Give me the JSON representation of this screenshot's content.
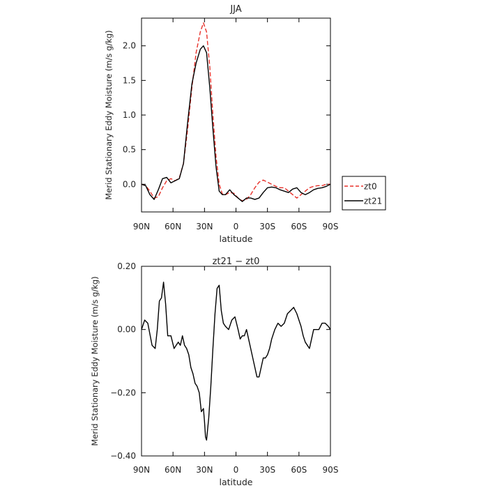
{
  "chart_data": [
    {
      "type": "line",
      "title": "JJA",
      "xlabel": "latitude",
      "ylabel": "Merid Stationary Eddy Moisture (m/s g/kg)",
      "xlim": [
        90,
        -90
      ],
      "ylim": [
        -0.4,
        2.4
      ],
      "xticks": [
        {
          "value": 90,
          "label": "90N"
        },
        {
          "value": 60,
          "label": "60N"
        },
        {
          "value": 30,
          "label": "30N"
        },
        {
          "value": 0,
          "label": "0"
        },
        {
          "value": -30,
          "label": "30S"
        },
        {
          "value": -60,
          "label": "60S"
        },
        {
          "value": -90,
          "label": "90S"
        }
      ],
      "yticks": [
        {
          "value": 0,
          "label": "0.0"
        },
        {
          "value": 0.5,
          "label": "0.5"
        },
        {
          "value": 1.0,
          "label": "1.0"
        },
        {
          "value": 1.5,
          "label": "1.5"
        },
        {
          "value": 2.0,
          "label": "2.0"
        }
      ],
      "legend_position": "outside-right",
      "series": [
        {
          "name": "zt0",
          "color": "#e8312a",
          "dash": "dashed",
          "x": [
            90,
            86,
            82,
            78,
            74,
            70,
            66,
            62,
            58,
            54,
            50,
            46,
            42,
            38,
            34,
            31,
            28,
            25,
            22,
            19,
            16,
            13,
            10,
            6,
            2,
            -2,
            -6,
            -10,
            -14,
            -18,
            -22,
            -26,
            -30,
            -34,
            -38,
            -42,
            -46,
            -50,
            -54,
            -58,
            -62,
            -66,
            -70,
            -74,
            -78,
            -82,
            -86,
            -90
          ],
          "y": [
            0.0,
            -0.02,
            -0.1,
            -0.2,
            -0.18,
            -0.05,
            0.05,
            0.08,
            0.05,
            0.09,
            0.3,
            0.8,
            1.4,
            1.9,
            2.2,
            2.33,
            2.2,
            1.7,
            1.0,
            0.4,
            0.0,
            -0.14,
            -0.15,
            -0.12,
            -0.13,
            -0.2,
            -0.24,
            -0.22,
            -0.15,
            -0.05,
            0.03,
            0.06,
            0.03,
            0.0,
            -0.03,
            -0.05,
            -0.05,
            -0.1,
            -0.15,
            -0.2,
            -0.15,
            -0.1,
            -0.05,
            -0.03,
            -0.02,
            -0.02,
            0.0,
            0.0
          ]
        },
        {
          "name": "zt21",
          "color": "#000000",
          "dash": "solid",
          "x": [
            90,
            86,
            82,
            78,
            74,
            70,
            66,
            62,
            58,
            54,
            50,
            46,
            42,
            38,
            34,
            31,
            28,
            25,
            22,
            19,
            16,
            13,
            10,
            6,
            2,
            -2,
            -6,
            -10,
            -14,
            -18,
            -22,
            -26,
            -30,
            -34,
            -38,
            -42,
            -46,
            -50,
            -54,
            -58,
            -62,
            -66,
            -70,
            -74,
            -78,
            -82,
            -86,
            -90
          ],
          "y": [
            0.0,
            -0.02,
            -0.15,
            -0.22,
            -0.08,
            0.08,
            0.1,
            0.02,
            0.05,
            0.08,
            0.3,
            0.9,
            1.45,
            1.75,
            1.95,
            2.0,
            1.9,
            1.4,
            0.8,
            0.25,
            -0.1,
            -0.15,
            -0.15,
            -0.08,
            -0.15,
            -0.2,
            -0.25,
            -0.2,
            -0.2,
            -0.22,
            -0.2,
            -0.12,
            -0.05,
            -0.04,
            -0.05,
            -0.08,
            -0.1,
            -0.12,
            -0.07,
            -0.05,
            -0.12,
            -0.15,
            -0.12,
            -0.08,
            -0.06,
            -0.05,
            -0.03,
            0.0
          ]
        }
      ]
    },
    {
      "type": "line",
      "title": "zt21 − zt0",
      "xlabel": "latitude",
      "ylabel": "Merid Stationary Eddy Moisture (m/s g/kg)",
      "xlim": [
        90,
        -90
      ],
      "ylim": [
        -0.4,
        0.2
      ],
      "xticks": [
        {
          "value": 90,
          "label": "90N"
        },
        {
          "value": 60,
          "label": "60N"
        },
        {
          "value": 30,
          "label": "30N"
        },
        {
          "value": 0,
          "label": "0"
        },
        {
          "value": -30,
          "label": "30S"
        },
        {
          "value": -60,
          "label": "60S"
        },
        {
          "value": -90,
          "label": "90S"
        }
      ],
      "yticks": [
        {
          "value": 0.2,
          "label": "0.20"
        },
        {
          "value": 0.0,
          "label": "0.00"
        },
        {
          "value": -0.2,
          "label": "−0.20"
        },
        {
          "value": -0.4,
          "label": "−0.40"
        }
      ],
      "series": [
        {
          "color": "#000000",
          "dash": "solid",
          "x": [
            90,
            87,
            84,
            80,
            77,
            75,
            73,
            71,
            69,
            67,
            65,
            62,
            59,
            57,
            55,
            53,
            51,
            49,
            47,
            45,
            43,
            41,
            39,
            37,
            35,
            33,
            31,
            30,
            29,
            28,
            26,
            24,
            22,
            20,
            18,
            16,
            14,
            12,
            10,
            7,
            4,
            1,
            -2,
            -4,
            -6,
            -8,
            -10,
            -12,
            -14,
            -16,
            -18,
            -20,
            -22,
            -24,
            -26,
            -28,
            -30,
            -32,
            -34,
            -37,
            -40,
            -43,
            -46,
            -49,
            -52,
            -55,
            -58,
            -60,
            -62,
            -64,
            -66,
            -68,
            -70,
            -72,
            -74,
            -76,
            -79,
            -82,
            -85,
            -88,
            -90
          ],
          "y": [
            0.0,
            0.03,
            0.02,
            -0.05,
            -0.06,
            0.0,
            0.09,
            0.1,
            0.15,
            0.08,
            -0.02,
            -0.02,
            -0.06,
            -0.05,
            -0.04,
            -0.05,
            -0.02,
            -0.05,
            -0.06,
            -0.08,
            -0.12,
            -0.14,
            -0.17,
            -0.18,
            -0.2,
            -0.26,
            -0.25,
            -0.29,
            -0.34,
            -0.35,
            -0.28,
            -0.18,
            -0.06,
            0.05,
            0.13,
            0.14,
            0.06,
            0.02,
            0.01,
            0.0,
            0.03,
            0.04,
            0.0,
            -0.03,
            -0.02,
            -0.02,
            0.0,
            -0.03,
            -0.06,
            -0.09,
            -0.12,
            -0.15,
            -0.15,
            -0.12,
            -0.09,
            -0.09,
            -0.08,
            -0.06,
            -0.03,
            0.0,
            0.02,
            0.01,
            0.02,
            0.05,
            0.06,
            0.07,
            0.05,
            0.03,
            0.01,
            -0.02,
            -0.04,
            -0.05,
            -0.06,
            -0.03,
            0.0,
            0.0,
            0.0,
            0.02,
            0.02,
            0.01,
            0.0
          ]
        }
      ]
    }
  ]
}
